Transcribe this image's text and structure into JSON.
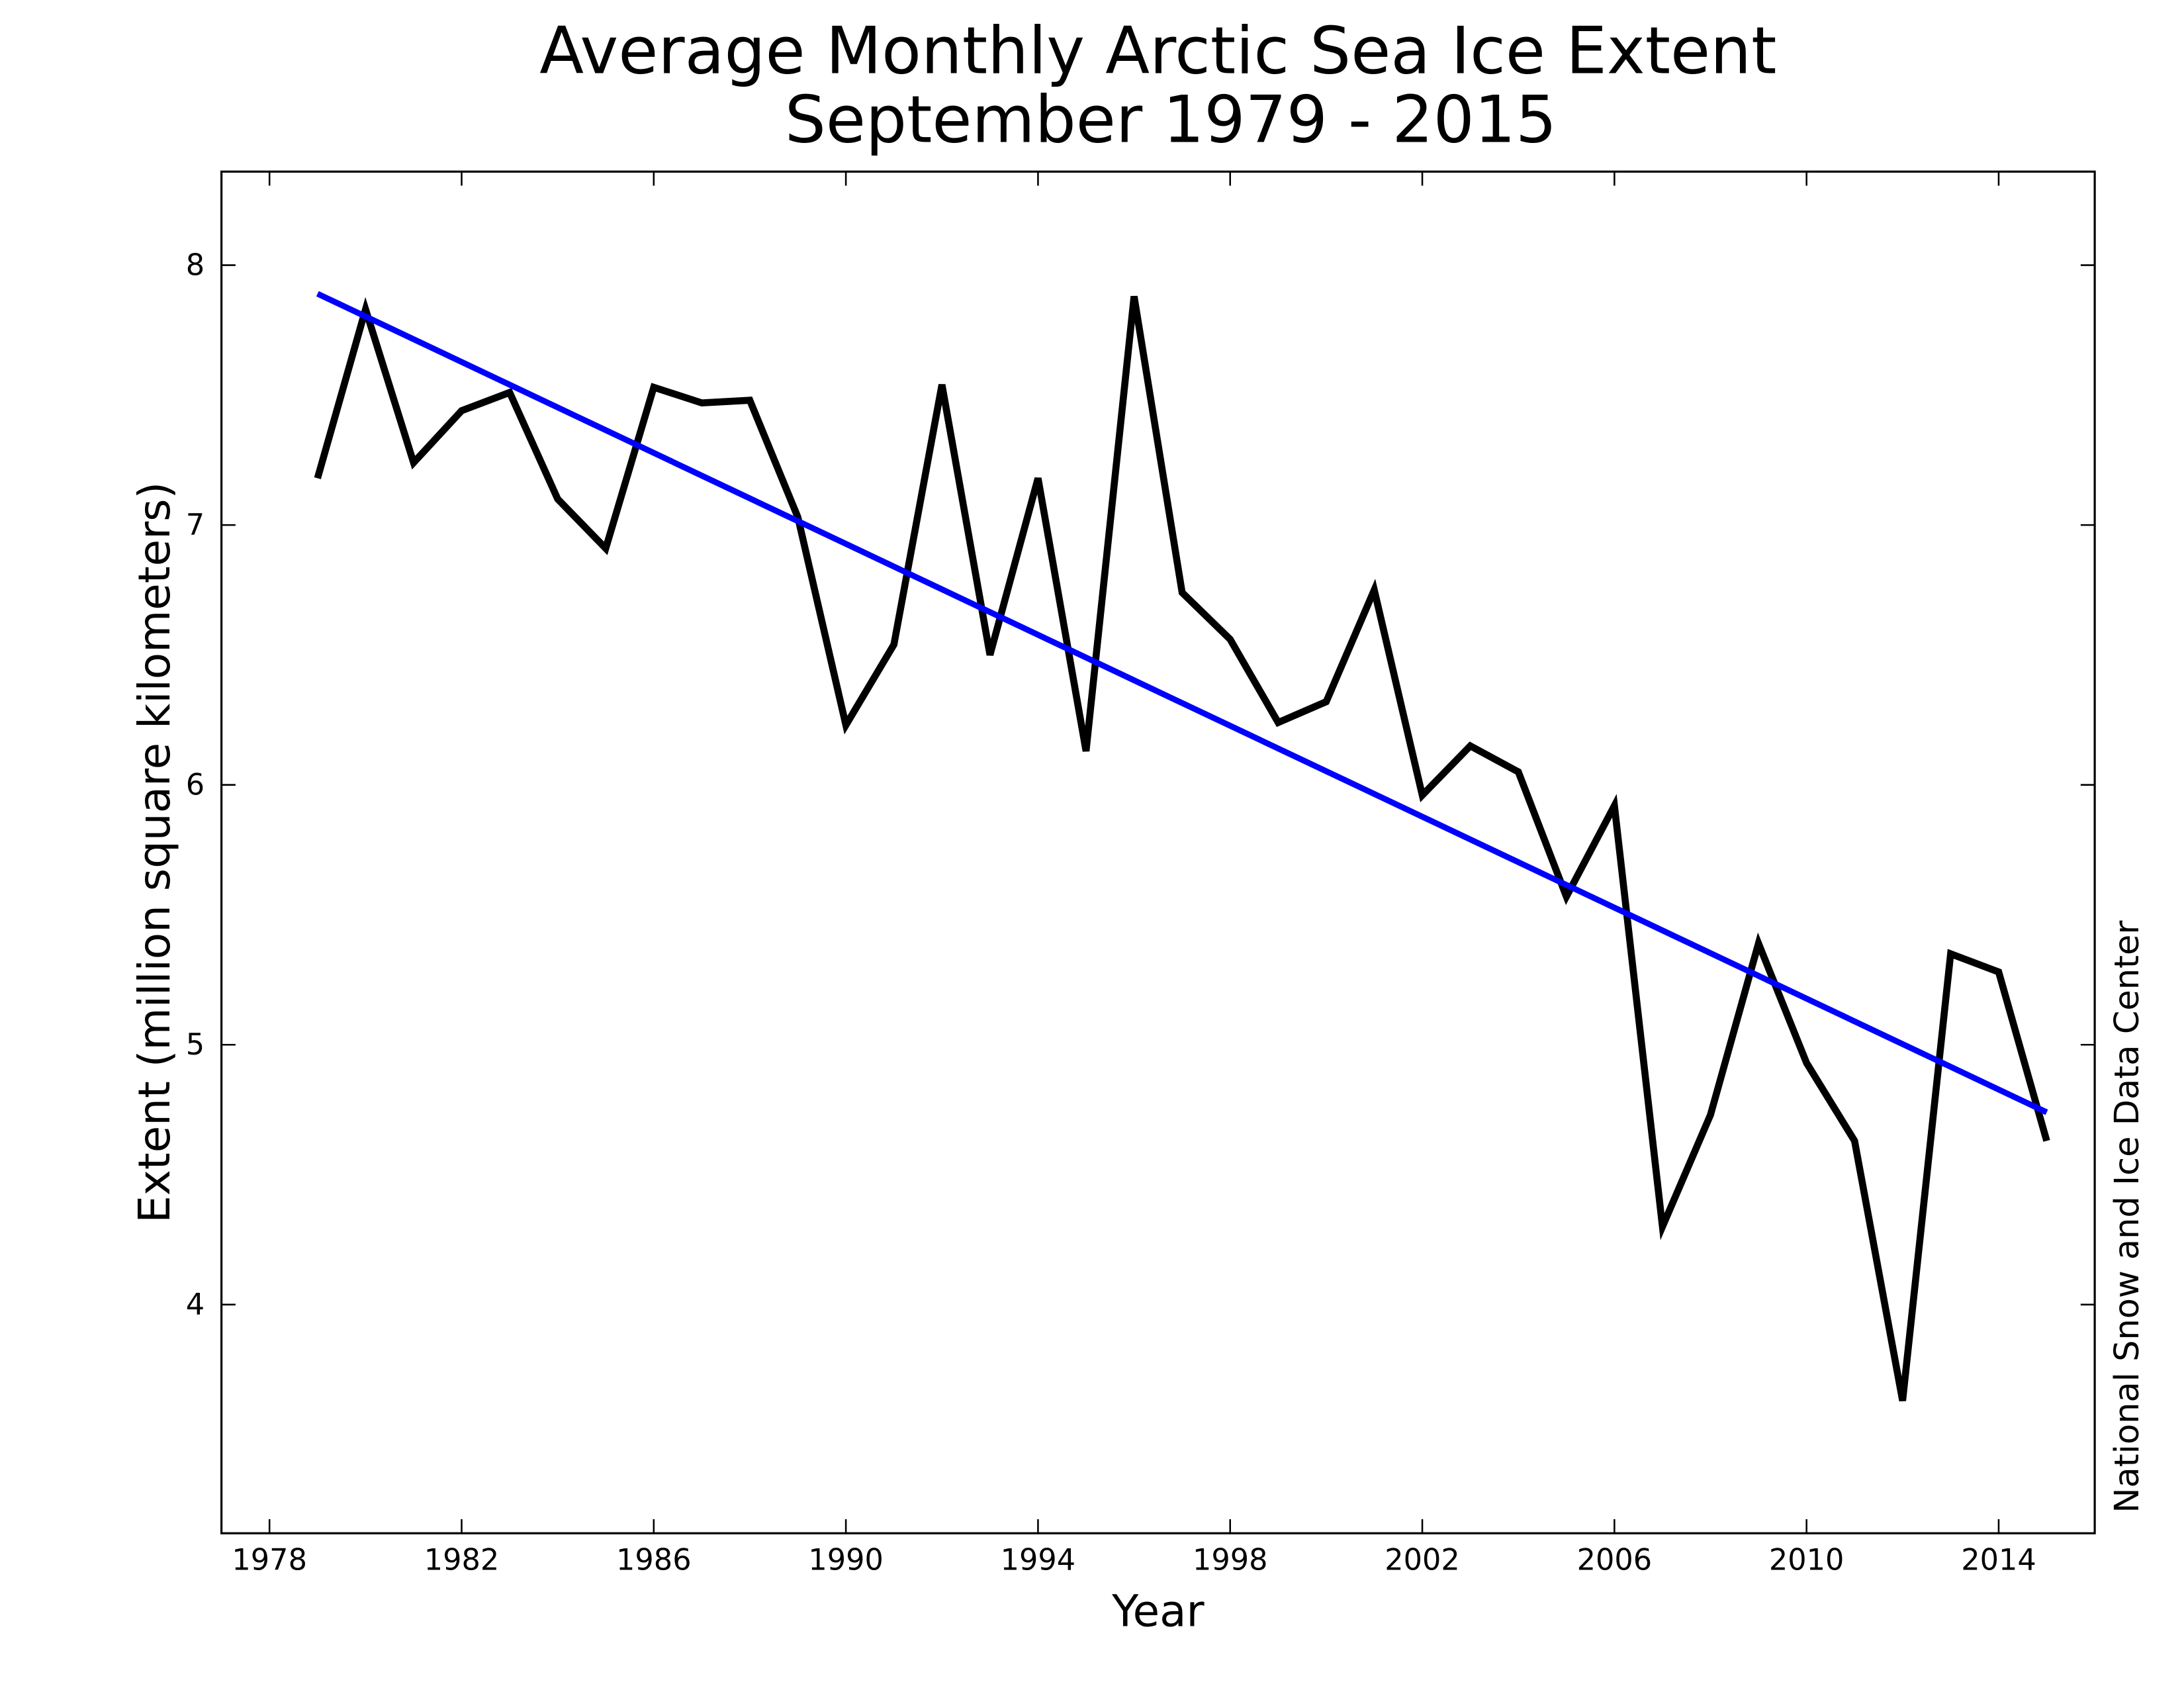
{
  "chart_data": {
    "type": "line",
    "title": "Average Monthly Arctic Sea Ice Extent",
    "subtitle": "September 1979 - 2015",
    "x_label": "Year",
    "y_label": "Extent (million square kilometers)",
    "annotation": "National Snow and Ice Data Center",
    "x": [
      1979,
      1980,
      1981,
      1982,
      1983,
      1984,
      1985,
      1986,
      1987,
      1988,
      1989,
      1990,
      1991,
      1992,
      1993,
      1994,
      1995,
      1996,
      1997,
      1998,
      1999,
      2000,
      2001,
      2002,
      2003,
      2004,
      2005,
      2006,
      2007,
      2008,
      2009,
      2010,
      2011,
      2012,
      2013,
      2014,
      2015
    ],
    "series": [
      {
        "color": "#000000",
        "values": [
          7.18,
          7.83,
          7.24,
          7.44,
          7.51,
          7.1,
          6.91,
          7.53,
          7.47,
          7.48,
          7.03,
          6.23,
          6.54,
          7.54,
          6.5,
          7.18,
          6.13,
          7.88,
          6.74,
          6.56,
          6.24,
          6.32,
          6.75,
          5.96,
          6.15,
          6.05,
          5.57,
          5.92,
          4.3,
          4.73,
          5.39,
          4.93,
          4.63,
          3.63,
          5.35,
          5.28,
          4.63
        ]
      },
      {
        "color": "#0000ff",
        "x": [
          1979,
          2015
        ],
        "values": [
          7.89,
          4.74
        ]
      }
    ],
    "xlim": [
      1977,
      2016
    ],
    "xticks": [
      1978,
      1982,
      1986,
      1990,
      1994,
      1998,
      2002,
      2006,
      2010,
      2014
    ],
    "ylim": [
      3.12,
      8.36
    ],
    "yticks": [
      4,
      5,
      6,
      7,
      8
    ],
    "grid": false
  }
}
